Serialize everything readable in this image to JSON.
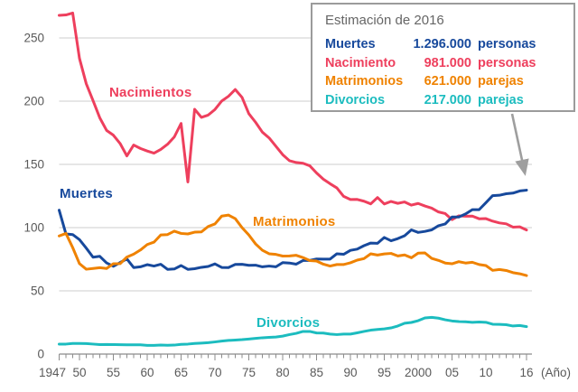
{
  "chart_data": {
    "type": "line",
    "x_label_suffix": "(Año)",
    "x": [
      1947,
      1948,
      1949,
      1950,
      1951,
      1952,
      1953,
      1954,
      1955,
      1956,
      1957,
      1958,
      1959,
      1960,
      1961,
      1962,
      1963,
      1964,
      1965,
      1966,
      1967,
      1968,
      1969,
      1970,
      1971,
      1972,
      1973,
      1974,
      1975,
      1976,
      1977,
      1978,
      1979,
      1980,
      1981,
      1982,
      1983,
      1984,
      1985,
      1986,
      1987,
      1988,
      1989,
      1990,
      1991,
      1992,
      1993,
      1994,
      1995,
      1996,
      1997,
      1998,
      1999,
      2000,
      2001,
      2002,
      2003,
      2004,
      2005,
      2006,
      2007,
      2008,
      2009,
      2010,
      2011,
      2012,
      2013,
      2014,
      2015,
      2016
    ],
    "series": [
      {
        "name": "Nacimientos",
        "color": "#ee3f5d",
        "values": [
          267.9,
          268.2,
          269.7,
          233.8,
          213.8,
          200.5,
          186.8,
          176.9,
          173.1,
          166.5,
          156.7,
          165.3,
          162.6,
          160.6,
          158.9,
          161.8,
          165.9,
          171.7,
          182.4,
          136.1,
          193.6,
          187.2,
          189.0,
          193.4,
          200.1,
          203.9,
          209.2,
          203.0,
          190.1,
          183.3,
          175.5,
          170.9,
          164.3,
          157.7,
          152.9,
          151.5,
          150.9,
          148.9,
          143.2,
          138.3,
          134.7,
          131.4,
          124.7,
          122.2,
          122.3,
          120.9,
          118.8,
          123.8,
          118.7,
          120.7,
          119.2,
          120.3,
          117.8,
          119.1,
          117.1,
          115.4,
          112.4,
          111.1,
          106.3,
          109.3,
          109.0,
          109.1,
          107.0,
          107.1,
          105.1,
          103.7,
          103.0,
          100.4,
          100.6,
          98.1
        ]
      },
      {
        "name": "Muertes",
        "color": "#17499c",
        "values": [
          113.8,
          95.0,
          94.5,
          90.5,
          83.8,
          76.6,
          77.3,
          72.1,
          69.4,
          72.4,
          75.2,
          68.4,
          69.0,
          70.7,
          69.6,
          71.0,
          67.0,
          67.3,
          70.0,
          67.0,
          67.5,
          68.6,
          69.3,
          71.3,
          68.5,
          68.4,
          70.9,
          71.0,
          70.2,
          70.3,
          69.0,
          69.6,
          69.0,
          72.3,
          72.0,
          71.1,
          74.0,
          74.0,
          75.2,
          75.1,
          75.1,
          79.3,
          78.9,
          82.0,
          83.0,
          85.7,
          87.8,
          87.6,
          92.2,
          89.6,
          91.3,
          93.6,
          98.2,
          96.2,
          97.0,
          98.2,
          101.5,
          102.9,
          108.4,
          108.4,
          110.8,
          114.2,
          114.2,
          119.7,
          125.3,
          125.6,
          126.8,
          127.3,
          129.0,
          129.6
        ]
      },
      {
        "name": "Matrimonios",
        "color": "#ef8200",
        "values": [
          93.4,
          95.4,
          84.2,
          71.5,
          67.1,
          67.7,
          68.3,
          67.7,
          71.4,
          71.5,
          76.7,
          79.0,
          82.3,
          86.6,
          88.5,
          94.2,
          94.5,
          97.2,
          95.4,
          95.0,
          96.4,
          96.6,
          100.9,
          102.9,
          109.1,
          109.9,
          107.1,
          100.0,
          94.2,
          87.1,
          82.1,
          79.3,
          78.8,
          77.5,
          77.6,
          78.1,
          76.3,
          73.9,
          73.6,
          71.1,
          69.6,
          70.8,
          70.8,
          72.2,
          74.3,
          75.5,
          79.3,
          78.3,
          79.2,
          79.6,
          77.6,
          78.4,
          76.2,
          79.8,
          80.0,
          75.7,
          74.1,
          72.0,
          71.4,
          73.1,
          72.0,
          72.6,
          70.8,
          70.0,
          66.2,
          66.9,
          66.1,
          64.4,
          63.5,
          62.1
        ]
      },
      {
        "name": "Divorcios",
        "color": "#1cbcbf",
        "values": [
          7.9,
          7.9,
          8.4,
          8.4,
          8.3,
          7.9,
          7.5,
          7.6,
          7.5,
          7.4,
          7.3,
          7.3,
          7.3,
          6.9,
          6.9,
          7.1,
          7.0,
          7.1,
          7.7,
          7.9,
          8.4,
          8.7,
          9.0,
          9.6,
          10.3,
          10.8,
          11.1,
          11.4,
          11.9,
          12.4,
          12.9,
          13.2,
          13.5,
          14.2,
          15.4,
          16.4,
          17.9,
          17.9,
          16.7,
          16.6,
          15.8,
          15.4,
          15.8,
          15.8,
          16.8,
          17.9,
          18.9,
          19.5,
          19.9,
          20.7,
          22.2,
          24.4,
          25.0,
          26.4,
          28.6,
          29.0,
          28.4,
          27.1,
          26.2,
          25.7,
          25.5,
          25.1,
          25.4,
          25.1,
          23.6,
          23.5,
          23.2,
          22.2,
          22.6,
          21.7
        ]
      }
    ],
    "ylim": [
      0,
      275
    ],
    "yticks": [
      0,
      50,
      100,
      150,
      200,
      250
    ],
    "xtick_labels": [
      {
        "label": "1947",
        "year": 1947
      },
      {
        "label": "50",
        "year": 1950
      },
      {
        "label": "55",
        "year": 1955
      },
      {
        "label": "60",
        "year": 1960
      },
      {
        "label": "65",
        "year": 1965
      },
      {
        "label": "70",
        "year": 1970
      },
      {
        "label": "75",
        "year": 1975
      },
      {
        "label": "80",
        "year": 1980
      },
      {
        "label": "85",
        "year": 1985
      },
      {
        "label": "90",
        "year": 1990
      },
      {
        "label": "95",
        "year": 1995
      },
      {
        "label": "2000",
        "year": 2000
      },
      {
        "label": "05",
        "year": 2005
      },
      {
        "label": "10",
        "year": 2010
      },
      {
        "label": "16",
        "year": 2016
      }
    ],
    "grid": true,
    "legend_position": "top-right"
  },
  "legend": {
    "title": "Estimación de 2016",
    "rows": [
      {
        "label": "Muertes",
        "value": "1.296.000",
        "unit": "personas",
        "color": "#17499c"
      },
      {
        "label": "Nacimiento",
        "value": "981.000",
        "unit": "personas",
        "color": "#ee3f5d"
      },
      {
        "label": "Matrimonios",
        "value": "621.000",
        "unit": "parejas",
        "color": "#ef8200"
      },
      {
        "label": "Divorcios",
        "value": "217.000",
        "unit": "parejas",
        "color": "#1cbcbf"
      }
    ]
  },
  "colors": {
    "axis": "#8c8c8c",
    "grid": "#cccccc",
    "tick_text": "#595959",
    "arrow": "#9e9e9e"
  }
}
